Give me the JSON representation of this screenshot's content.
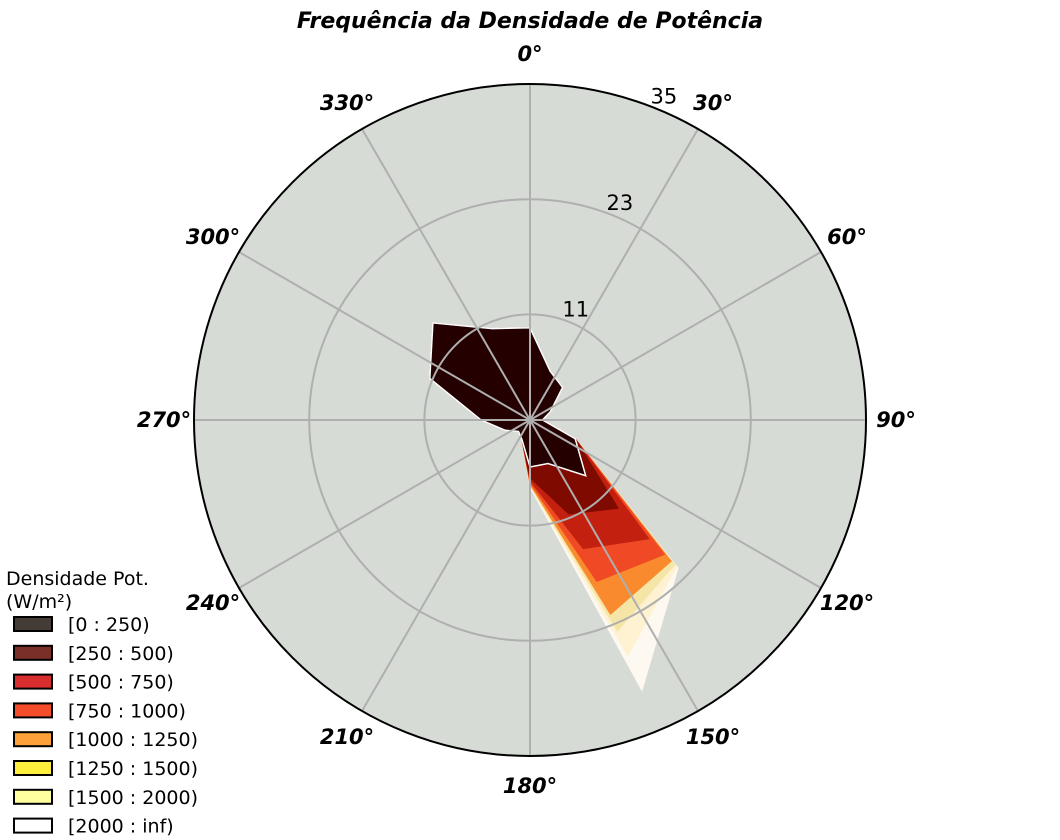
{
  "chart_data": {
    "type": "windrose",
    "title": "Frequência da Densidade de Potência",
    "angular_ticks": [
      {
        "deg": 0,
        "label": "0°"
      },
      {
        "deg": 30,
        "label": "30°"
      },
      {
        "deg": 60,
        "label": "60°"
      },
      {
        "deg": 90,
        "label": "90°"
      },
      {
        "deg": 120,
        "label": "120°"
      },
      {
        "deg": 150,
        "label": "150°"
      },
      {
        "deg": 180,
        "label": "180°"
      },
      {
        "deg": 210,
        "label": "210°"
      },
      {
        "deg": 240,
        "label": "240°"
      },
      {
        "deg": 270,
        "label": "270°"
      },
      {
        "deg": 300,
        "label": "300°"
      },
      {
        "deg": 330,
        "label": "330°"
      }
    ],
    "radial_ticks": [
      {
        "value": 11,
        "label": "11"
      },
      {
        "value": 23,
        "label": "23"
      },
      {
        "value": 35,
        "label": "35"
      }
    ],
    "rmax": 35,
    "direction_clockwise": true,
    "zero_location": "top",
    "grid": true,
    "background_color": "#d7dbd6",
    "grid_color": "#afafaf",
    "directions_deg": [
      0,
      22.5,
      45,
      67.5,
      90,
      112.5,
      135,
      157.5,
      180,
      202.5,
      225,
      247.5,
      270,
      292.5,
      315,
      337.5
    ],
    "bins": [
      {
        "label": "[0 : 250)",
        "legend_color": "#453b37",
        "fill_color": "#240000",
        "cumulative": [
          9.6,
          5.5,
          4.8,
          2.3,
          1.3,
          5.1,
          8.2,
          4.9,
          4.9,
          2.2,
          1.7,
          2.8,
          5.1,
          11.3,
          14.3,
          10.3
        ]
      },
      {
        "label": "[250 : 500)",
        "legend_color": "#7a3028",
        "fill_color": "#7e0a00",
        "cumulative": [
          9.6,
          5.5,
          4.8,
          2.3,
          1.3,
          5.1,
          13.0,
          10.6,
          6.0,
          2.2,
          1.7,
          2.8,
          5.1,
          11.3,
          14.3,
          10.3
        ]
      },
      {
        "label": "[500 : 750)",
        "legend_color": "#d92e2e",
        "fill_color": "#c4200f",
        "cumulative": [
          9.6,
          5.5,
          4.8,
          2.3,
          1.3,
          5.1,
          17.5,
          14.5,
          6.3,
          2.2,
          1.7,
          2.8,
          5.1,
          11.3,
          14.3,
          10.3
        ]
      },
      {
        "label": "[750 : 1000)",
        "legend_color": "#f54d2c",
        "fill_color": "#ef4a25",
        "cumulative": [
          9.6,
          5.5,
          4.8,
          2.3,
          1.3,
          5.1,
          19.8,
          18.2,
          6.5,
          2.2,
          1.7,
          2.8,
          5.1,
          11.3,
          14.3,
          10.3
        ]
      },
      {
        "label": "[1000 : 1250)",
        "legend_color": "#fda23a",
        "fill_color": "#f98b2e",
        "cumulative": [
          9.6,
          5.5,
          4.8,
          2.3,
          1.3,
          5.1,
          20.8,
          21.9,
          6.7,
          2.2,
          1.7,
          2.8,
          5.1,
          11.3,
          14.3,
          10.3
        ]
      },
      {
        "label": "[1250 : 1500)",
        "legend_color": "#fded3c",
        "fill_color": "#f5e6a8",
        "cumulative": [
          9.6,
          5.5,
          4.8,
          2.3,
          1.3,
          5.1,
          21.3,
          23.8,
          6.8,
          2.2,
          1.7,
          2.8,
          5.1,
          11.3,
          14.3,
          10.3
        ]
      },
      {
        "label": "[1500 : 2000)",
        "legend_color": "#ffffa0",
        "fill_color": "#fff2d2",
        "cumulative": [
          9.6,
          5.5,
          4.8,
          2.3,
          1.3,
          5.1,
          21.6,
          26.6,
          6.9,
          2.2,
          1.7,
          2.8,
          5.1,
          11.3,
          14.3,
          10.3
        ]
      },
      {
        "label": "[2000 : inf)",
        "legend_color": "#ffffff",
        "fill_color": "#fdf8f0",
        "cumulative": [
          9.6,
          5.5,
          4.8,
          2.3,
          1.3,
          5.1,
          21.8,
          30.5,
          7.0,
          2.2,
          1.7,
          2.8,
          5.1,
          11.3,
          14.3,
          10.3
        ]
      }
    ],
    "legend": {
      "title_lines": [
        "Densidade Pot.",
        "(W/m²)"
      ],
      "placement": "lower-left"
    }
  }
}
